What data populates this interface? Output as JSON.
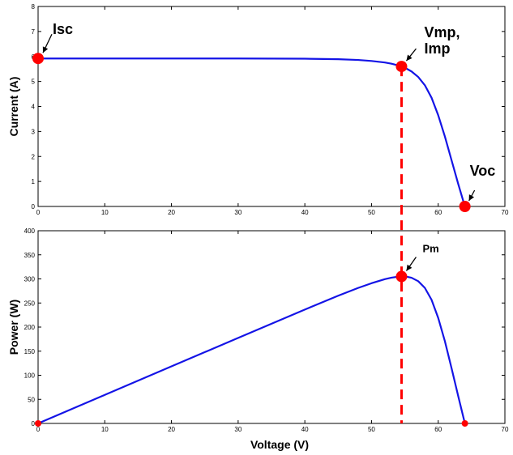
{
  "chart_data": [
    {
      "type": "line",
      "title": "",
      "xlabel": "",
      "ylabel": "Current (A)",
      "xlim": [
        0,
        70
      ],
      "ylim": [
        0,
        8
      ],
      "xticks": [
        0,
        10,
        20,
        30,
        40,
        50,
        60,
        70
      ],
      "yticks": [
        0,
        1,
        2,
        3,
        4,
        5,
        6,
        7,
        8
      ],
      "grid": false,
      "series": [
        {
          "x": [
            0,
            5,
            10,
            20,
            30,
            40,
            45,
            48,
            50,
            52,
            53,
            54,
            55,
            56,
            57,
            58,
            59,
            60,
            61,
            62,
            63,
            64
          ],
          "y": [
            5.92,
            5.92,
            5.92,
            5.92,
            5.92,
            5.91,
            5.89,
            5.86,
            5.82,
            5.76,
            5.71,
            5.64,
            5.55,
            5.4,
            5.18,
            4.85,
            4.35,
            3.65,
            2.8,
            1.85,
            0.9,
            0.0
          ],
          "color": "#1414e6"
        }
      ],
      "markers": [
        {
          "label": "Isc",
          "x": 0,
          "y": 5.92
        },
        {
          "label": "Vmp,",
          "label2": "Imp",
          "x": 54.5,
          "y": 5.6
        },
        {
          "label": "Voc",
          "x": 64,
          "y": 0
        }
      ]
    },
    {
      "type": "line",
      "title": "",
      "xlabel": "Voltage (V)",
      "ylabel": "Power (W)",
      "xlim": [
        0,
        70
      ],
      "ylim": [
        0,
        400
      ],
      "xticks": [
        0,
        10,
        20,
        30,
        40,
        50,
        60,
        70
      ],
      "yticks": [
        0,
        50,
        100,
        150,
        200,
        250,
        300,
        350,
        400
      ],
      "grid": false,
      "series": [
        {
          "x": [
            0,
            5,
            10,
            20,
            30,
            40,
            45,
            48,
            50,
            52,
            53,
            54,
            55,
            56,
            57,
            58,
            59,
            60,
            61,
            62,
            63,
            64
          ],
          "y": [
            0,
            29.6,
            59.2,
            118.4,
            177.6,
            236.4,
            265.1,
            281.3,
            291,
            299.5,
            302.6,
            304.6,
            305.3,
            302.4,
            295.3,
            281.3,
            256.7,
            219,
            170.8,
            114.7,
            56.7,
            0
          ],
          "color": "#1414e6"
        }
      ],
      "markers": [
        {
          "label": "",
          "x": 0,
          "y": 0
        },
        {
          "label": "Pm",
          "x": 54.5,
          "y": 305
        },
        {
          "label": "",
          "x": 64,
          "y": 0
        }
      ]
    }
  ],
  "mpp_voltage": 54.5,
  "colors": {
    "curve": "#1414e6",
    "marker": "#ff0000",
    "guide": "#ff0000"
  }
}
